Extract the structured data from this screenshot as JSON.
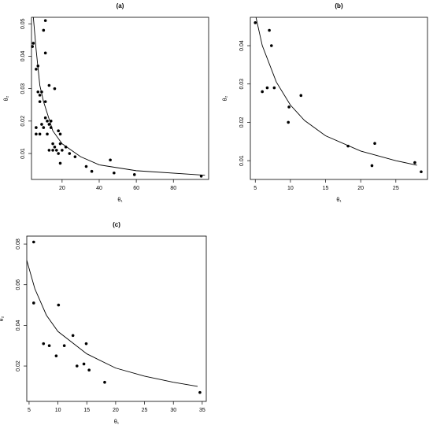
{
  "chart_data": [
    {
      "type": "scatter",
      "title": "(a)",
      "x_label": "θ₁",
      "y_label": "θ₂",
      "color": "#000000",
      "xlim": [
        3.5,
        99
      ],
      "ylim": [
        0.002,
        0.052
      ],
      "xticks": [
        20,
        40,
        60,
        80
      ],
      "yticks": [
        0.01,
        0.02,
        0.03,
        0.04,
        0.05
      ],
      "x": [
        4,
        4.5,
        6,
        7,
        7,
        8,
        8,
        9,
        10,
        11,
        11,
        11,
        13,
        16,
        6,
        6,
        8,
        9,
        10,
        11,
        12,
        13,
        14,
        12,
        14,
        13,
        15,
        15,
        16,
        17,
        18,
        19,
        19,
        20,
        18,
        19,
        22,
        24,
        27,
        33,
        36,
        46,
        48,
        59,
        95
      ],
      "values": [
        0.043,
        0.044,
        0.036,
        0.037,
        0.029,
        0.026,
        0.028,
        0.029,
        0.048,
        0.051,
        0.041,
        0.026,
        0.031,
        0.03,
        0.016,
        0.018,
        0.016,
        0.019,
        0.018,
        0.021,
        0.02,
        0.019,
        0.02,
        0.016,
        0.018,
        0.011,
        0.013,
        0.011,
        0.012,
        0.011,
        0.017,
        0.016,
        0.013,
        0.011,
        0.01,
        0.007,
        0.012,
        0.01,
        0.009,
        0.006,
        0.0045,
        0.008,
        0.004,
        0.0035,
        0.003
      ],
      "fit": {
        "x": [
          4.5,
          6,
          8,
          10,
          15,
          20,
          30,
          40,
          60,
          97
        ],
        "values": [
          0.052,
          0.042,
          0.031,
          0.026,
          0.017,
          0.013,
          0.009,
          0.0065,
          0.0047,
          0.0033
        ]
      }
    },
    {
      "type": "scatter",
      "title": "(b)",
      "x_label": "θ₁",
      "y_label": "θ₂",
      "color": "#000000",
      "xlim": [
        4.3,
        29.5
      ],
      "ylim": [
        0.0051,
        0.0474
      ],
      "xticks": [
        5,
        10,
        15,
        20,
        25
      ],
      "yticks": [
        0.01,
        0.02,
        0.03,
        0.04
      ],
      "x": [
        5,
        6,
        6.7,
        7,
        7.3,
        7.7,
        9.7,
        9.8,
        11.5,
        18.2,
        21.6,
        22,
        27.7,
        28.6
      ],
      "values": [
        0.046,
        0.028,
        0.029,
        0.044,
        0.04,
        0.029,
        0.02,
        0.024,
        0.027,
        0.0138,
        0.0087,
        0.0145,
        0.0095,
        0.0071
      ],
      "fit": {
        "x": [
          5.1,
          6,
          8,
          10,
          12,
          15,
          20,
          25,
          28
        ],
        "values": [
          0.0474,
          0.04,
          0.0305,
          0.0245,
          0.0205,
          0.0165,
          0.0125,
          0.01,
          0.0088
        ]
      }
    },
    {
      "type": "scatter",
      "title": "(c)",
      "x_label": "θ₁",
      "y_label": "θ₂",
      "color": "#000000",
      "xlim": [
        4.6,
        35.7
      ],
      "ylim": [
        0.0026,
        0.0839
      ],
      "xticks": [
        5,
        10,
        15,
        20,
        25,
        30,
        35
      ],
      "yticks": [
        0.02,
        0.04,
        0.06,
        0.08
      ],
      "x": [
        5.8,
        5.8,
        7.5,
        8.5,
        9.7,
        10.1,
        11.1,
        12.6,
        13.3,
        14.5,
        14.9,
        15.4,
        18.1,
        34.6
      ],
      "values": [
        0.081,
        0.051,
        0.031,
        0.03,
        0.025,
        0.05,
        0.03,
        0.035,
        0.02,
        0.021,
        0.031,
        0.018,
        0.012,
        0.007
      ],
      "fit": {
        "x": [
          4.6,
          6,
          8,
          10,
          15,
          20,
          25,
          30,
          34.2
        ],
        "values": [
          0.072,
          0.058,
          0.045,
          0.037,
          0.026,
          0.019,
          0.015,
          0.012,
          0.01
        ]
      }
    }
  ]
}
